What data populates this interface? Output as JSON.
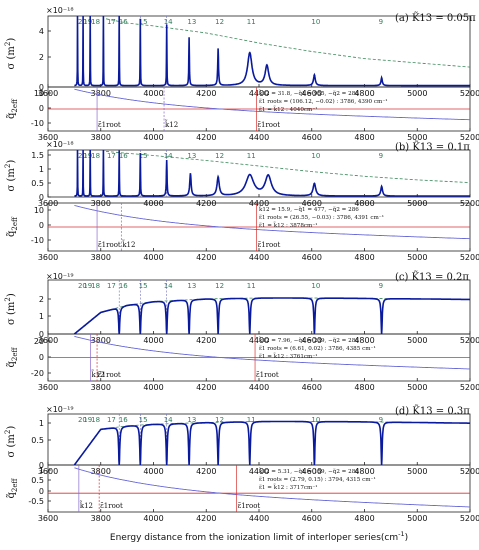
{
  "figure": {
    "xlabel": "Energy distance from the ionization limit of interloper series(cm",
    "xlabel_sup": "-1",
    "xlabel_close": ")",
    "sigma_ylabel": "σ (m",
    "sigma_ylabel_sup": "2",
    "sigma_ylabel_close": ")",
    "q_ylabel": "q̃",
    "q_ylabel_sub": "2eff",
    "x_ticks": [
      "3600",
      "3800",
      "4000",
      "4200",
      "4400",
      "4600",
      "4800",
      "5000",
      "5200"
    ],
    "n_labels": [
      "20",
      "19",
      "18",
      "17",
      "16",
      "15",
      "14",
      "13",
      "12",
      "11",
      "10",
      "9"
    ],
    "colors": {
      "cross_section": "#0a1a9e",
      "envelope": "#3a8a5a",
      "roots_line": "#d93030",
      "q_curve": "#6a6ad8",
      "dashed_fit": "#b03030"
    }
  },
  "chart_data": [
    {
      "type": "line",
      "panel": "a",
      "title": "(a) K̃13 = 0.05π",
      "exponent": "×10⁻¹⁸",
      "sigma_ticks": [
        "0",
        "2",
        "4"
      ],
      "xlim": [
        3600,
        5200
      ],
      "ylim": [
        0,
        5
      ],
      "envelope": {
        "x": [
          3820,
          3900,
          4000,
          4200,
          4400,
          4600,
          4800,
          5000,
          5200
        ],
        "y": [
          4.8,
          4.5,
          4.3,
          3.8,
          3.1,
          2.5,
          2.0,
          1.7,
          1.4
        ]
      },
      "peaks": [
        {
          "x": 3712,
          "y": 5.2,
          "w": 0.5
        },
        {
          "x": 3733,
          "y": 5.2,
          "w": 0.5
        },
        {
          "x": 3760,
          "y": 5.2,
          "w": 0.5
        },
        {
          "x": 3810,
          "y": 5.1,
          "w": 0.5
        },
        {
          "x": 3870,
          "y": 4.9,
          "w": 0.6
        },
        {
          "x": 3950,
          "y": 4.7,
          "w": 0.7
        },
        {
          "x": 4050,
          "y": 4.3,
          "w": 0.8
        },
        {
          "x": 4135,
          "y": 3.4,
          "w": 1.2
        },
        {
          "x": 4245,
          "y": 2.6,
          "w": 1.8
        },
        {
          "x": 4365,
          "y": 2.3,
          "w": 10
        },
        {
          "x": 4430,
          "y": 1.4,
          "w": 8
        },
        {
          "x": 4610,
          "y": 0.75,
          "w": 4
        },
        {
          "x": 4865,
          "y": 0.55,
          "w": 3
        }
      ]
    },
    {
      "type": "line",
      "panel": "a-q",
      "q_ticks": [
        "10",
        "0",
        "-10"
      ],
      "ylim": [
        -14,
        14
      ],
      "roots_x": 4040,
      "annotations": {
        "k12": "k̃12 = 31.8, −q̃1 = 955, −q̃2 = 286",
        "roots": "ε̃1 roots = (106.12, −0.02) : 3786, 4390 cm⁻¹",
        "eq": "ε̃1 = k̃12 : 4040cm⁻¹"
      },
      "marker_labels": [
        "ε̃1root",
        "k̃12",
        "ε̃1root"
      ],
      "marker_x": [
        3786,
        4040,
        4390
      ]
    },
    {
      "type": "line",
      "panel": "b",
      "title": "(b) K̃13 = 0.1π",
      "exponent": "×10⁻¹⁸",
      "sigma_ticks": [
        "0",
        "0.5",
        "1",
        "1.5"
      ],
      "xlim": [
        3600,
        5200
      ],
      "ylim": [
        0,
        1.7
      ],
      "envelope": {
        "x": [
          3820,
          3900,
          4000,
          4200,
          4400,
          4600,
          4800,
          5000,
          5200
        ],
        "y": [
          1.65,
          1.58,
          1.5,
          1.32,
          1.12,
          0.92,
          0.75,
          0.62,
          0.52
        ]
      },
      "peaks": [
        {
          "x": 3712,
          "y": 1.7,
          "w": 0.5
        },
        {
          "x": 3733,
          "y": 1.7,
          "w": 0.5
        },
        {
          "x": 3760,
          "y": 1.7,
          "w": 0.5
        },
        {
          "x": 3810,
          "y": 1.7,
          "w": 0.6
        },
        {
          "x": 3870,
          "y": 1.65,
          "w": 0.7
        },
        {
          "x": 3950,
          "y": 1.55,
          "w": 0.9
        },
        {
          "x": 4050,
          "y": 1.3,
          "w": 1.5
        },
        {
          "x": 4140,
          "y": 0.82,
          "w": 3
        },
        {
          "x": 4245,
          "y": 0.68,
          "w": 5
        },
        {
          "x": 4365,
          "y": 0.75,
          "w": 18
        },
        {
          "x": 4435,
          "y": 0.72,
          "w": 14
        },
        {
          "x": 4610,
          "y": 0.45,
          "w": 6
        },
        {
          "x": 4865,
          "y": 0.35,
          "w": 4
        }
      ]
    },
    {
      "type": "line",
      "panel": "b-q",
      "q_ticks": [
        "10",
        "0",
        "-10"
      ],
      "ylim": [
        -14,
        14
      ],
      "roots_x": 3878,
      "annotations": {
        "k12": "k̃12 = 15.9, −q̃1 = 477, −q̃2 = 286",
        "roots": "ε̃1 roots = (26.55, −0.03) : 3786, 4391 cm⁻¹",
        "eq": "ε̃1 = k̃12 : 3878cm⁻¹"
      },
      "marker_labels": [
        "ε̃1root",
        "k̃12",
        "ε̃1root"
      ],
      "marker_x": [
        3786,
        3878,
        4391
      ]
    },
    {
      "type": "line",
      "panel": "c",
      "title": "(c) K̃13 = 0.2π",
      "exponent": "×10⁻¹⁹",
      "sigma_ticks": [
        "0",
        "1",
        "2"
      ],
      "xlim": [
        3600,
        5200
      ],
      "ylim": [
        0,
        3
      ],
      "envelope": {
        "x": [
          3800,
          3900,
          4000,
          4200,
          4400,
          4600,
          4800,
          5000,
          5200
        ],
        "y": [
          1.2,
          1.6,
          1.8,
          1.95,
          2.0,
          2.0,
          1.98,
          1.95,
          1.92
        ]
      },
      "peaks": [],
      "dips": [
        3870,
        3950,
        4050,
        4135,
        4245,
        4365,
        4610,
        4865
      ]
    },
    {
      "type": "line",
      "panel": "c-q",
      "q_ticks": [
        "20",
        "0",
        "-20"
      ],
      "ylim": [
        -30,
        30
      ],
      "roots_x": 3761,
      "annotations": {
        "k12": "k̃12 = 7.96, −q̃1 = 239, −q̃2 = 286",
        "roots": "ε̃1 roots = (6.61, 0.02) : 3786, 4385 cm⁻¹",
        "eq": "ε̃1 = k̃12 : 3761cm⁻¹"
      },
      "marker_labels": [
        "k̃12",
        "ε̃1root",
        "ε̃1root"
      ],
      "marker_x": [
        3761,
        3786,
        4385
      ]
    },
    {
      "type": "line",
      "panel": "d",
      "title": "(d) K̃13 = 0.3π",
      "exponent": "×10⁻¹⁹",
      "sigma_ticks": [
        "0",
        "0.5",
        "1"
      ],
      "xlim": [
        3600,
        5200
      ],
      "ylim": [
        0,
        1.5
      ],
      "envelope": {
        "x": [
          3800,
          3900,
          4000,
          4200,
          4400,
          4600,
          4800,
          5000,
          5200
        ],
        "y": [
          1.05,
          1.15,
          1.2,
          1.25,
          1.28,
          1.28,
          1.27,
          1.25,
          1.23
        ]
      },
      "peaks": [],
      "dips": [
        3870,
        3950,
        4050,
        4135,
        4245,
        4365,
        4610,
        4865
      ]
    },
    {
      "type": "line",
      "panel": "d-q",
      "q_ticks": [
        "1",
        "0.5",
        "0",
        "-0.5"
      ],
      "ylim": [
        -0.8,
        1.2
      ],
      "roots_x": 3717,
      "annotations": {
        "k12": "k̃12 = 5.31, −q̃1 = 159, −q̃2 = 286",
        "roots": "ε̃1 roots = (2.79, 0.15) : 3794, 4315 cm⁻¹",
        "eq": "ε̃1 = k̃12 : 3717cm⁻¹"
      },
      "marker_labels": [
        "k̃12",
        "ε̃1root",
        "ε̃1root"
      ],
      "marker_x": [
        3717,
        3794,
        4315
      ]
    }
  ]
}
